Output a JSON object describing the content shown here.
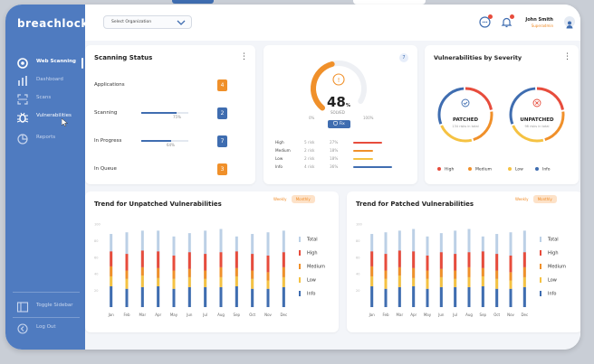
{
  "sidebar": {
    "logo": "breachlock",
    "items": [
      {
        "label": "Web Scanning",
        "icon": "web-scanning-icon",
        "active": true
      },
      {
        "label": "Dashboard",
        "icon": "dashboard-icon",
        "active": false
      },
      {
        "label": "Scans",
        "icon": "scans-icon",
        "active": false
      },
      {
        "label": "Vulnerabilities",
        "icon": "bug-icon",
        "active": false
      },
      {
        "label": "Reports",
        "icon": "reports-icon",
        "active": false
      }
    ],
    "toggle_label": "Toggle Sidebar",
    "logout_label": "Log Out"
  },
  "topbar": {
    "org_select": "Select Organization",
    "user_name": "John Smith",
    "user_role": "Superadmin"
  },
  "scanning_status": {
    "title": "Scanning Status",
    "rows": [
      {
        "label": "Applications",
        "count": "4",
        "color": "#f0902a"
      },
      {
        "label": "Scanning",
        "count": "2",
        "percent": "75%",
        "progress": 0.75,
        "color": "#3f6db0"
      },
      {
        "label": "In Progress",
        "count": "7",
        "percent": "64%",
        "progress": 0.64,
        "color": "#3f6db0"
      },
      {
        "label": "In Queue",
        "count": "3",
        "color": "#f0902a"
      }
    ]
  },
  "solved_gauge": {
    "badge": "7",
    "value": "48",
    "unit": "%",
    "label": "SOLVED",
    "min": "0%",
    "max": "100%",
    "fix_label": "Fix",
    "progress": 0.48,
    "rows": [
      {
        "name": "High",
        "count": "5 risk",
        "pct": "27%",
        "color": "#e74c3c",
        "bar": 0.27
      },
      {
        "name": "Medium",
        "count": "2 risk",
        "pct": "18%",
        "color": "#f0902a",
        "bar": 0.18
      },
      {
        "name": "Low",
        "count": "2 risk",
        "pct": "18%",
        "color": "#f5c242",
        "bar": 0.18
      },
      {
        "name": "Info",
        "count": "4 risk",
        "pct": "36%",
        "color": "#3f6db0",
        "bar": 0.36
      }
    ]
  },
  "severity": {
    "title": "Vulnerabilities by Severity",
    "patched_label": "PATCHED",
    "patched_sub": "134 risks in total",
    "unpatched_label": "UNPATCHED",
    "unpatched_sub": "98 risks in total",
    "legend": [
      {
        "name": "High",
        "color": "#e74c3c"
      },
      {
        "name": "Medium",
        "color": "#f0902a"
      },
      {
        "name": "Low",
        "color": "#f5c242"
      },
      {
        "name": "Info",
        "color": "#3f6db0"
      }
    ]
  },
  "colors": {
    "total": "#bcd0e6",
    "high": "#e74c3c",
    "medium": "#f0902a",
    "low": "#f5c242",
    "info": "#3f6db0"
  },
  "legend_labels": [
    "Total",
    "High",
    "Medium",
    "Low",
    "Info"
  ],
  "chart_data": [
    {
      "type": "bar",
      "title": "Trend for Unpatched Vulnerabilities",
      "toggle": [
        "Weekly",
        "Monthly"
      ],
      "categories": [
        "Jan",
        "Feb",
        "Mar",
        "Apr",
        "May",
        "Jun",
        "Jul",
        "Aug",
        "Sep",
        "Oct",
        "Nov",
        "Dec"
      ],
      "ylim": [
        0,
        100
      ],
      "series": [
        {
          "name": "Total",
          "values": [
            88,
            90,
            92,
            92,
            85,
            89,
            92,
            94,
            85,
            88,
            90,
            92
          ]
        },
        {
          "name": "High",
          "values": [
            18,
            20,
            20,
            20,
            18,
            20,
            20,
            18,
            20,
            20,
            20,
            18
          ]
        },
        {
          "name": "Medium",
          "values": [
            12,
            10,
            10,
            12,
            10,
            10,
            10,
            12,
            10,
            10,
            10,
            12
          ]
        },
        {
          "name": "Low",
          "values": [
            12,
            12,
            14,
            10,
            12,
            12,
            10,
            12,
            12,
            12,
            10,
            12
          ]
        },
        {
          "name": "Info",
          "values": [
            25,
            22,
            24,
            25,
            22,
            24,
            24,
            24,
            25,
            22,
            22,
            24
          ]
        }
      ]
    },
    {
      "type": "bar",
      "title": "Trend for Patched Vulnerabilities",
      "toggle": [
        "Weekly",
        "Monthly"
      ],
      "categories": [
        "Jan",
        "Feb",
        "Mar",
        "Apr",
        "May",
        "Jun",
        "Jul",
        "Aug",
        "Sep",
        "Oct",
        "Nov",
        "Dec"
      ],
      "ylim": [
        0,
        100
      ],
      "series": [
        {
          "name": "Total",
          "values": [
            88,
            90,
            92,
            94,
            85,
            89,
            92,
            94,
            85,
            88,
            90,
            92
          ]
        },
        {
          "name": "High",
          "values": [
            18,
            20,
            20,
            20,
            18,
            20,
            20,
            18,
            20,
            20,
            20,
            18
          ]
        },
        {
          "name": "Medium",
          "values": [
            12,
            10,
            10,
            12,
            10,
            10,
            10,
            12,
            10,
            10,
            10,
            12
          ]
        },
        {
          "name": "Low",
          "values": [
            12,
            12,
            14,
            10,
            12,
            12,
            10,
            12,
            12,
            12,
            10,
            12
          ]
        },
        {
          "name": "Info",
          "values": [
            25,
            22,
            24,
            25,
            22,
            24,
            24,
            24,
            25,
            22,
            22,
            24
          ]
        }
      ]
    }
  ]
}
